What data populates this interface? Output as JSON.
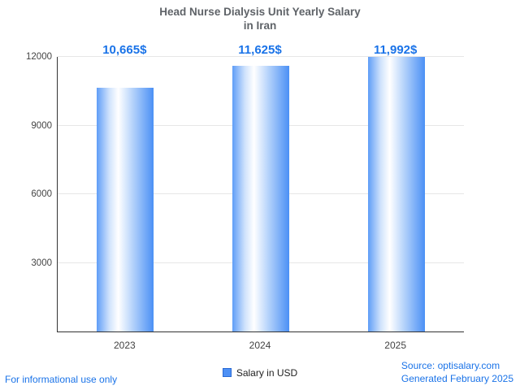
{
  "title": {
    "line1": "Head Nurse Dialysis Unit Yearly Salary",
    "line2": "in Iran"
  },
  "chart_data": {
    "type": "bar",
    "categories": [
      "2023",
      "2024",
      "2025"
    ],
    "values": [
      10665,
      11625,
      11992
    ],
    "value_labels": [
      "10,665$",
      "11,625$",
      "11,992$"
    ],
    "series_name": "Salary in USD",
    "ylim": [
      0,
      12000
    ],
    "yticks": [
      3000,
      6000,
      9000,
      12000
    ],
    "grid": true,
    "legend_position": "bottom",
    "bar_color": "#4d90f5"
  },
  "legend": {
    "label": "Salary in USD"
  },
  "footer": {
    "left": "For informational use only",
    "source": "Source: optisalary.com",
    "generated": "Generated February 2025"
  },
  "colors": {
    "accent": "#1a73e8",
    "title": "#5f6368",
    "axis": "#333333",
    "grid": "#e6e6e6"
  }
}
